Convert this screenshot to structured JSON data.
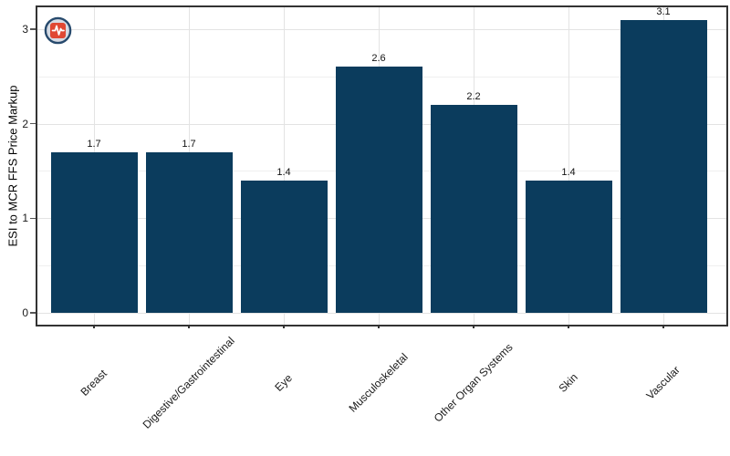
{
  "chart_data": {
    "type": "bar",
    "categories": [
      "Breast",
      "Digestive/Gastrointestinal",
      "Eye",
      "Musculoskeletal",
      "Other Organ Systems",
      "Skin",
      "Vascular"
    ],
    "values": [
      1.7,
      1.7,
      1.4,
      2.6,
      2.2,
      1.4,
      3.1
    ],
    "value_labels": [
      "1.7",
      "1.7",
      "1.4",
      "2.6",
      "2.2",
      "1.4",
      "3.1"
    ],
    "title": "",
    "xlabel": "",
    "ylabel": "ESI to MCR FFS Price Markup",
    "ylim": [
      -0.15,
      3.25
    ],
    "yticks": [
      0,
      1,
      2,
      3
    ],
    "yticks_minor": [
      0.5,
      1.5,
      2.5
    ],
    "grid": true,
    "legend": false,
    "bar_color": "#0b3c5d",
    "gridline_color": "#e3e3e3",
    "panel_border_color": "#333333"
  },
  "icon": {
    "name": "health-pulse-badge-icon",
    "ring_color": "#274a6d",
    "circle_fill": "#d6dae3",
    "square_fill": "#e04733",
    "glyph": "pulse-line",
    "glyph_color": "#ffffff"
  }
}
